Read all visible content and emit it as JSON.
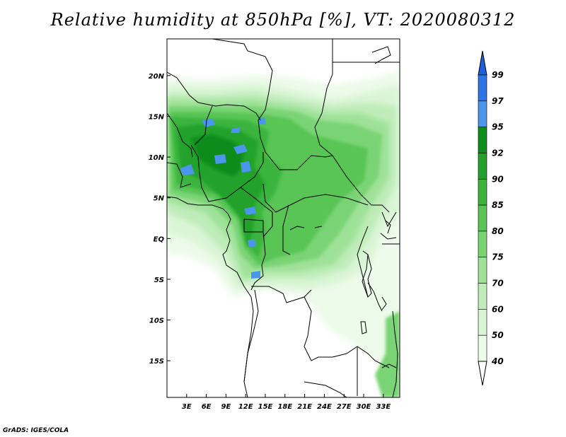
{
  "title": "Relative humidity at 850hPa [%], VT: 2020080312",
  "credit": "GrADS: IGES/COLA",
  "map": {
    "lon_range": [
      0,
      35.5
    ],
    "lat_range": [
      -19.5,
      24.5
    ],
    "lat_ticks": [
      "20N",
      "15N",
      "10N",
      "5N",
      "EQ",
      "5S",
      "10S",
      "15S"
    ],
    "lon_ticks": [
      "3E",
      "6E",
      "9E",
      "12E",
      "15E",
      "18E",
      "21E",
      "24E",
      "27E",
      "30E",
      "33E"
    ]
  },
  "colorbar": {
    "labels": [
      "99",
      "97",
      "95",
      "92",
      "90",
      "85",
      "80",
      "75",
      "70",
      "60",
      "50",
      "40"
    ],
    "colors": [
      "#1c5fd6",
      "#2f74e6",
      "#4c95ec",
      "#0f8c1e",
      "#22a22c",
      "#3ab43c",
      "#58c555",
      "#7ad474",
      "#9ee198",
      "#bfecb9",
      "#daf5d6",
      "#edfbea",
      "#ffffff"
    ]
  }
}
